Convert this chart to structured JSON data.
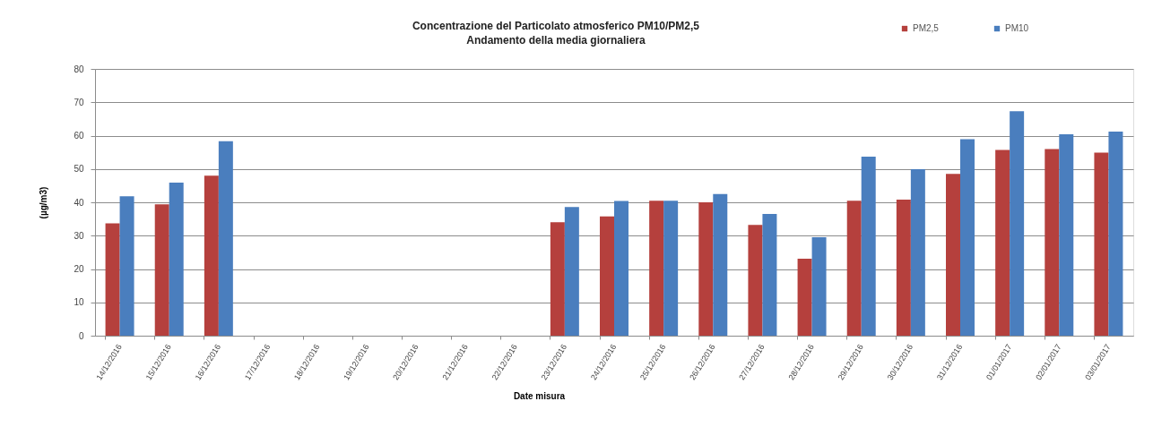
{
  "chart_data": {
    "type": "bar",
    "title": "Concentrazione del Particolato atmosferico PM10/PM2,5",
    "subtitle": "Andamento della media giornaliera",
    "xlabel": "Date misura",
    "ylabel": "(µg/m3)",
    "categories": [
      "14/12/2016",
      "15/12/2016",
      "16/12/2016",
      "17/12/2016",
      "18/12/2016",
      "19/12/2016",
      "20/12/2016",
      "21/12/2016",
      "22/12/2016",
      "23/12/2016",
      "24/12/2016",
      "25/12/2016",
      "26/12/2016",
      "27/12/2016",
      "28/12/2016",
      "29/12/2016",
      "30/12/2016",
      "31/12/2016",
      "01/01/2017",
      "02/01/2017",
      "03/01/2017"
    ],
    "series": [
      {
        "name": "PM2,5",
        "color": "#b5403d",
        "values": [
          33.7,
          39.4,
          48.0,
          null,
          null,
          null,
          null,
          null,
          null,
          34.0,
          35.8,
          40.5,
          40.0,
          33.2,
          23.1,
          40.5,
          40.8,
          48.5,
          55.7,
          56.0,
          54.9
        ]
      },
      {
        "name": "PM10",
        "color": "#4a7ebe",
        "values": [
          41.8,
          45.9,
          58.3,
          null,
          null,
          null,
          null,
          null,
          null,
          38.6,
          40.4,
          40.5,
          42.5,
          36.5,
          29.5,
          53.7,
          49.9,
          58.9,
          67.3,
          60.4,
          61.2
        ]
      }
    ],
    "ylim": [
      0,
      80
    ],
    "yticks": [
      0,
      10,
      20,
      30,
      40,
      50,
      60,
      70,
      80
    ],
    "grid": "y",
    "legend": "top right"
  }
}
